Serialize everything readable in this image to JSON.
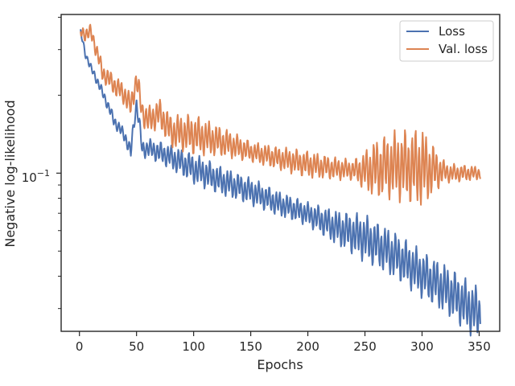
{
  "chart_data": {
    "type": "line",
    "xlabel": "Epochs",
    "ylabel": "Negative log-likelihood",
    "x_ticks": [
      0,
      50,
      100,
      150,
      200,
      250,
      300,
      350
    ],
    "y_scale": "log",
    "y_tick_label": {
      "base": "10",
      "exponent": "−1",
      "value": 0.1
    },
    "xlim": [
      -16,
      368
    ],
    "ylim": [
      0.0245,
      0.41
    ],
    "grid": false,
    "legend_position": "upper right",
    "series": [
      {
        "name": "Loss",
        "color": "#4c72b0",
        "anchors": [
          [
            1,
            0.35
          ],
          [
            5,
            0.29
          ],
          [
            10,
            0.255
          ],
          [
            20,
            0.205
          ],
          [
            30,
            0.16
          ],
          [
            40,
            0.138
          ],
          [
            45,
            0.12
          ],
          [
            50,
            0.185
          ],
          [
            55,
            0.123
          ],
          [
            60,
            0.125
          ],
          [
            75,
            0.118
          ],
          [
            100,
            0.104
          ],
          [
            125,
            0.093
          ],
          [
            150,
            0.085
          ],
          [
            175,
            0.076
          ],
          [
            200,
            0.0695
          ],
          [
            225,
            0.0615
          ],
          [
            250,
            0.056
          ],
          [
            275,
            0.0485
          ],
          [
            300,
            0.0405
          ],
          [
            325,
            0.0345
          ],
          [
            340,
            0.0305
          ],
          [
            350,
            0.0285
          ]
        ],
        "oscillation": [
          [
            0,
            0.01
          ],
          [
            40,
            0.02
          ],
          [
            100,
            0.045
          ],
          [
            150,
            0.04
          ],
          [
            200,
            0.035
          ],
          [
            250,
            0.07
          ],
          [
            300,
            0.07
          ],
          [
            350,
            0.08
          ]
        ]
      },
      {
        "name": "Val. loss",
        "color": "#dd8452",
        "anchors": [
          [
            1,
            0.35
          ],
          [
            5,
            0.345
          ],
          [
            10,
            0.35
          ],
          [
            20,
            0.245
          ],
          [
            30,
            0.22
          ],
          [
            40,
            0.2
          ],
          [
            45,
            0.18
          ],
          [
            50,
            0.23
          ],
          [
            55,
            0.172
          ],
          [
            60,
            0.16
          ],
          [
            70,
            0.17
          ],
          [
            80,
            0.145
          ],
          [
            100,
            0.141
          ],
          [
            125,
            0.132
          ],
          [
            150,
            0.121
          ],
          [
            175,
            0.114
          ],
          [
            200,
            0.108
          ],
          [
            225,
            0.104
          ],
          [
            250,
            0.102
          ],
          [
            275,
            0.107
          ],
          [
            300,
            0.105
          ],
          [
            325,
            0.1
          ],
          [
            350,
            0.1
          ]
        ],
        "oscillation": [
          [
            0,
            0.02
          ],
          [
            60,
            0.04
          ],
          [
            100,
            0.06
          ],
          [
            150,
            0.03
          ],
          [
            200,
            0.04
          ],
          [
            240,
            0.03
          ],
          [
            260,
            0.09
          ],
          [
            300,
            0.12
          ],
          [
            320,
            0.03
          ],
          [
            350,
            0.02
          ]
        ]
      }
    ]
  }
}
